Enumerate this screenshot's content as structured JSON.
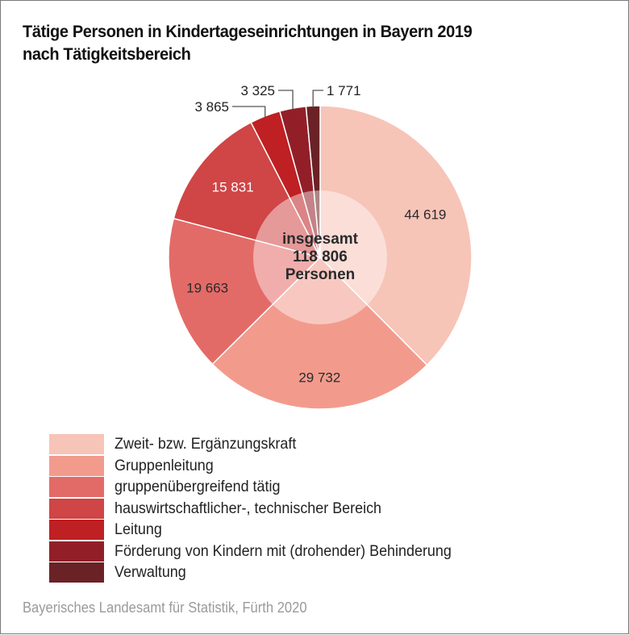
{
  "chart_data": {
    "type": "pie",
    "variant": "pie-with-center-label",
    "title": "Tätige Personen in Kindertageseinrichtungen in Bayern 2019",
    "subtitle": "nach Tätigkeitsbereich",
    "center_label": [
      "insgesamt",
      "118 806",
      "Personen"
    ],
    "total": 118806,
    "start_angle": "12 o'clock, clockwise",
    "slices": [
      {
        "name": "Zweit- bzw. Ergänzungskraft",
        "value": 44619,
        "label": "44 619",
        "color": "#f7c4b8"
      },
      {
        "name": "Gruppenleitung",
        "value": 29732,
        "label": "29 732",
        "color": "#f29b8d"
      },
      {
        "name": "gruppenübergreifend tätig",
        "value": 19663,
        "label": "19 663",
        "color": "#e36b67"
      },
      {
        "name": "hauswirtschaftlicher-, technischer Bereich",
        "value": 15831,
        "label": "15 831",
        "color": "#d04546"
      },
      {
        "name": "Leitung",
        "value": 3865,
        "label": "3 865",
        "color": "#be2023"
      },
      {
        "name": "Förderung von Kindern mit (drohender) Behinderung",
        "value": 3325,
        "label": "3 325",
        "color": "#921f28"
      },
      {
        "name": "Verwaltung",
        "value": 1771,
        "label": "1 771",
        "color": "#6b2226"
      }
    ],
    "legend_position": "bottom-left",
    "source": "Bayerisches Landesamt für Statistik, Fürth 2020"
  },
  "title_lines": [
    "Tätige Personen in Kindertageseinrichtungen in Bayern 2019",
    "nach Tätigkeitsbereich"
  ]
}
